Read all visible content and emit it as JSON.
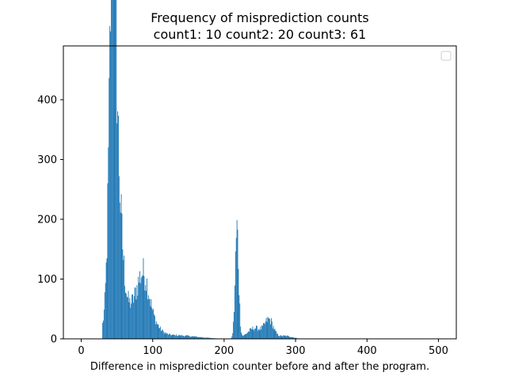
{
  "chart_data": {
    "type": "bar",
    "title": "Frequency of misprediction counts",
    "subtitle": "count1: 10  count2: 20  count3: 61",
    "xlabel": "Difference in misprediction counter before and after the program.",
    "ylabel": "",
    "xlim": [
      -25,
      525
    ],
    "ylim": [
      0,
      490
    ],
    "x_ticks": [
      0,
      100,
      200,
      300,
      400,
      500
    ],
    "y_ticks": [
      0,
      100,
      200,
      300,
      400
    ],
    "bar_color": "#1f77b4",
    "bin_width": 1,
    "legend": {
      "placement": "top-right",
      "entries": []
    },
    "grid": false,
    "peaks": [
      {
        "center": 44,
        "height": 470,
        "width": 4.0
      },
      {
        "center": 48,
        "height": 300,
        "width": 8.0
      },
      {
        "center": 72,
        "height": 45,
        "width": 10.0
      },
      {
        "center": 87,
        "height": 85,
        "width": 8.0
      },
      {
        "center": 100,
        "height": 20,
        "width": 10.0
      },
      {
        "center": 130,
        "height": 6,
        "width": 30.0
      },
      {
        "center": 218,
        "height": 180,
        "width": 2.5
      },
      {
        "center": 243,
        "height": 18,
        "width": 10.0
      },
      {
        "center": 263,
        "height": 30,
        "width": 6.0
      },
      {
        "center": 285,
        "height": 5,
        "width": 10.0
      }
    ],
    "x_start": 30,
    "x_end": 310
  },
  "axes": {
    "x_tick_labels": [
      "0",
      "100",
      "200",
      "300",
      "400",
      "500"
    ],
    "y_tick_labels": [
      "0",
      "100",
      "200",
      "300",
      "400"
    ]
  }
}
